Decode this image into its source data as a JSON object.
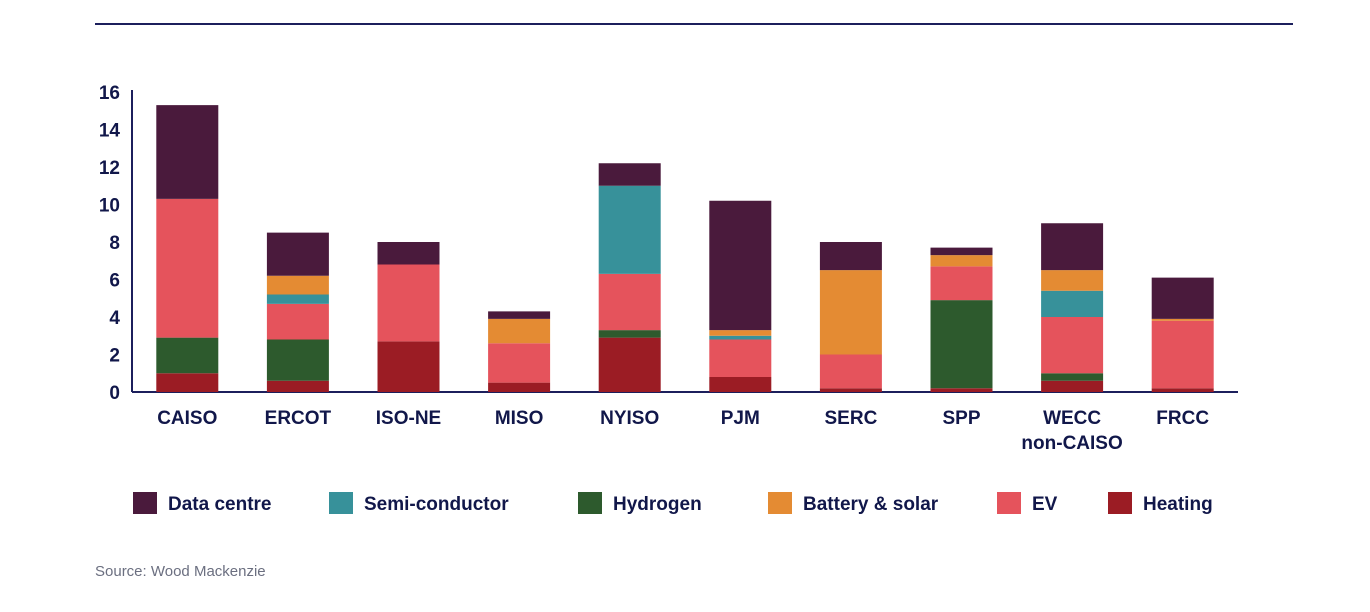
{
  "chart_data": {
    "type": "bar",
    "stacked": true,
    "title": "",
    "xlabel": "",
    "ylabel": "",
    "ylim": [
      0,
      16
    ],
    "yticks": [
      0,
      2,
      4,
      6,
      8,
      10,
      12,
      14,
      16
    ],
    "grid": false,
    "legend_position": "bottom",
    "categories": [
      [
        "CAISO"
      ],
      [
        "ERCOT"
      ],
      [
        "ISO-NE"
      ],
      [
        "MISO"
      ],
      [
        "NYISO"
      ],
      [
        "PJM"
      ],
      [
        "SERC"
      ],
      [
        "SPP"
      ],
      [
        "WECC",
        "non-CAISO"
      ],
      [
        "FRCC"
      ]
    ],
    "series": [
      {
        "name": "Heating",
        "color": "#9b1c24",
        "values": [
          1.0,
          0.6,
          2.7,
          0.5,
          2.9,
          0.8,
          0.2,
          0.2,
          0.6,
          0.2
        ]
      },
      {
        "name": "Hydrogen",
        "color": "#2d5a2d",
        "values": [
          1.9,
          2.2,
          0.0,
          0.0,
          0.4,
          0.0,
          0.0,
          4.7,
          0.4,
          0.0
        ]
      },
      {
        "name": "EV",
        "color": "#e5535c",
        "values": [
          7.4,
          1.9,
          4.1,
          2.1,
          3.0,
          2.0,
          1.8,
          1.8,
          3.0,
          3.6
        ]
      },
      {
        "name": "Semi-conductor",
        "color": "#37919a",
        "values": [
          0.0,
          0.5,
          0.0,
          0.0,
          4.7,
          0.2,
          0.0,
          0.0,
          1.4,
          0.0
        ]
      },
      {
        "name": "Battery & solar",
        "color": "#e48b33",
        "values": [
          0.0,
          1.0,
          0.0,
          1.3,
          0.0,
          0.3,
          4.5,
          0.6,
          1.1,
          0.1
        ]
      },
      {
        "name": "Data centre",
        "color": "#4a1a3c",
        "values": [
          5.0,
          2.3,
          1.2,
          0.4,
          1.2,
          6.9,
          1.5,
          0.4,
          2.5,
          2.2
        ]
      }
    ],
    "legend": [
      "Data centre",
      "Semi-conductor",
      "Hydrogen",
      "Battery & solar",
      "EV",
      "Heating"
    ]
  },
  "source": "Source: Wood Mackenzie"
}
